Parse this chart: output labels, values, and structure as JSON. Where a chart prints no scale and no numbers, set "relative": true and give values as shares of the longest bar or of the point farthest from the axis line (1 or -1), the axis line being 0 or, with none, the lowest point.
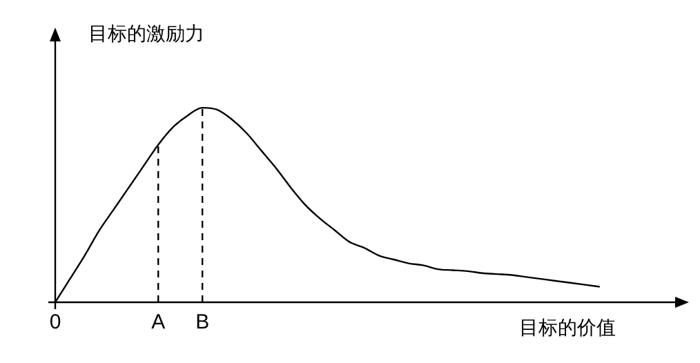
{
  "chart_data": {
    "type": "line",
    "relative": true,
    "ylabel": "目标的激励力",
    "xlabel": "目标的价值",
    "color": "#000000",
    "marker": "none",
    "line_style": "solid",
    "legend": false,
    "grid": false,
    "categories": [
      "0",
      null,
      null,
      null,
      null,
      null,
      null,
      "A",
      null,
      null,
      "B",
      null,
      null,
      null,
      null,
      null,
      null,
      null,
      null,
      null,
      null,
      null,
      null,
      null,
      null,
      null,
      null,
      null,
      null,
      null,
      null,
      null,
      null,
      null,
      null,
      null,
      null,
      null,
      null,
      null,
      null,
      null
    ],
    "values": [
      0,
      0.12,
      0.24,
      0.37,
      0.48,
      0.59,
      0.7,
      0.81,
      0.9,
      0.96,
      1,
      0.99,
      0.94,
      0.87,
      0.78,
      0.69,
      0.59,
      0.5,
      0.43,
      0.37,
      0.31,
      0.28,
      0.24,
      0.22,
      0.2,
      0.19,
      0.17,
      0.165,
      0.16,
      0.15,
      0.145,
      0.14,
      0.13,
      0.12,
      0.11,
      0.1,
      0.09,
      0.08,
      null,
      null,
      null,
      null
    ],
    "ref_lines": [
      {
        "axis": "x",
        "value": "A",
        "line_style": "dashed"
      },
      {
        "axis": "x",
        "value": "B",
        "line_style": "dashed"
      }
    ]
  }
}
